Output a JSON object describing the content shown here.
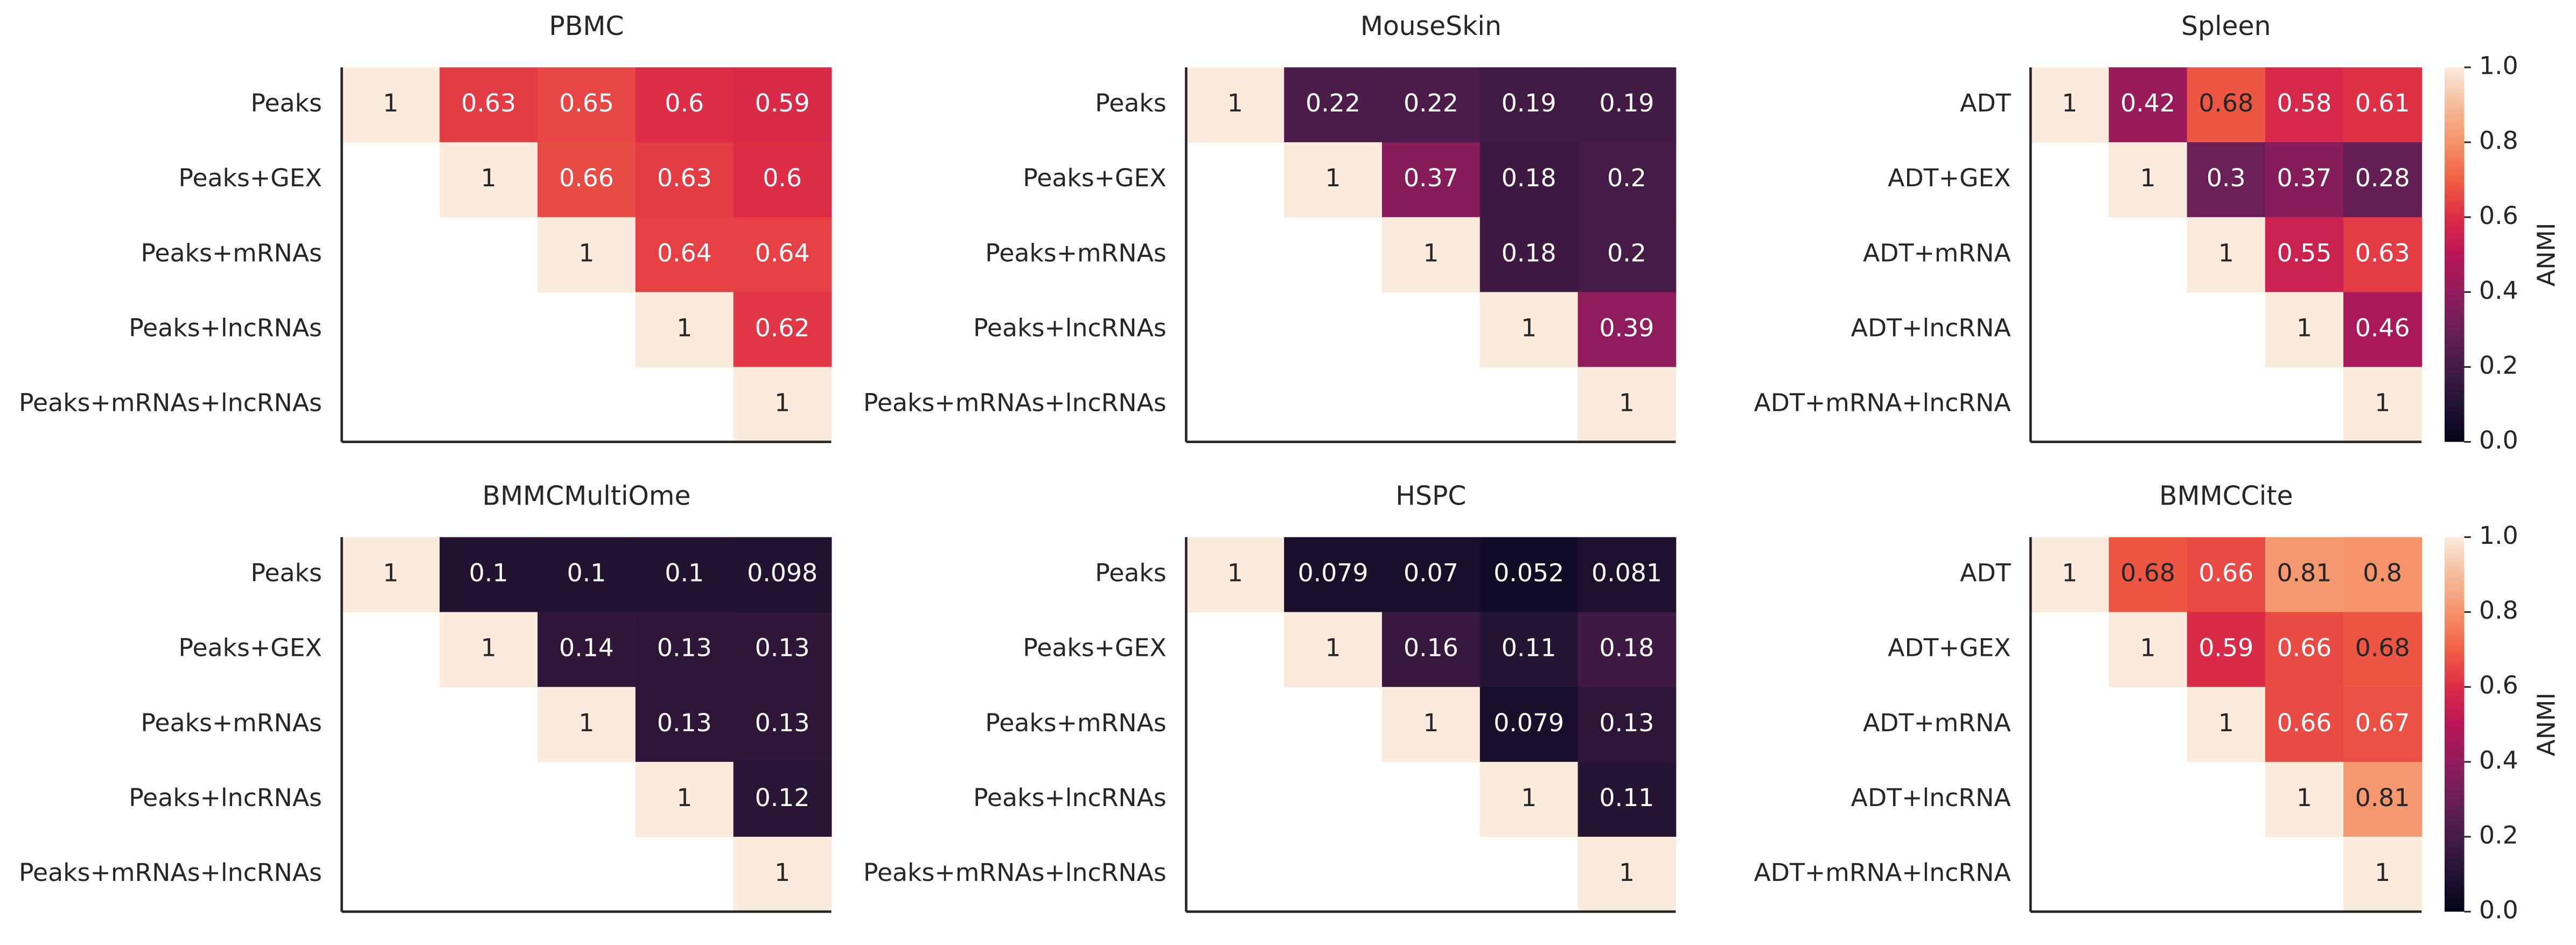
{
  "chart_data": [
    {
      "type": "heatmap",
      "title": "PBMC",
      "colormap": "rocket",
      "categories": [
        "Peaks",
        "Peaks+GEX",
        "Peaks+mRNAs",
        "Peaks+lncRNAs",
        "Peaks+mRNAs+lncRNAs"
      ],
      "values": [
        [
          1,
          0.63,
          0.65,
          0.6,
          0.59
        ],
        [
          null,
          1,
          0.66,
          0.63,
          0.6
        ],
        [
          null,
          null,
          1,
          0.64,
          0.64
        ],
        [
          null,
          null,
          null,
          1,
          0.62
        ],
        [
          null,
          null,
          null,
          null,
          1
        ]
      ]
    },
    {
      "type": "heatmap",
      "title": "MouseSkin",
      "colormap": "rocket",
      "categories": [
        "Peaks",
        "Peaks+GEX",
        "Peaks+mRNAs",
        "Peaks+lncRNAs",
        "Peaks+mRNAs+lncRNAs"
      ],
      "values": [
        [
          1,
          0.22,
          0.22,
          0.19,
          0.19
        ],
        [
          null,
          1,
          0.37,
          0.18,
          0.2
        ],
        [
          null,
          null,
          1,
          0.18,
          0.2
        ],
        [
          null,
          null,
          null,
          1,
          0.39
        ],
        [
          null,
          null,
          null,
          null,
          1
        ]
      ]
    },
    {
      "type": "heatmap",
      "title": "Spleen",
      "colormap": "rocket",
      "categories": [
        "ADT",
        "ADT+GEX",
        "ADT+mRNA",
        "ADT+lncRNA",
        "ADT+mRNA+lncRNA"
      ],
      "values": [
        [
          1,
          0.42,
          0.68,
          0.58,
          0.61
        ],
        [
          null,
          1,
          0.3,
          0.37,
          0.28
        ],
        [
          null,
          null,
          1,
          0.55,
          0.63
        ],
        [
          null,
          null,
          null,
          1,
          0.46
        ],
        [
          null,
          null,
          null,
          null,
          1
        ]
      ],
      "colorbar_label": "ANMI",
      "clim": [
        0,
        1
      ],
      "cticks": [
        {
          "value": 0,
          "label": "0.0"
        },
        {
          "value": 0.2,
          "label": "0.2"
        },
        {
          "value": 0.4,
          "label": "0.4"
        },
        {
          "value": 0.6,
          "label": "0.6"
        },
        {
          "value": 0.8,
          "label": "0.8"
        },
        {
          "value": 1,
          "label": "1.0"
        }
      ]
    },
    {
      "type": "heatmap",
      "title": "BMMCMultiOme",
      "colormap": "rocket",
      "categories": [
        "Peaks",
        "Peaks+GEX",
        "Peaks+mRNAs",
        "Peaks+lncRNAs",
        "Peaks+mRNAs+lncRNAs"
      ],
      "values": [
        [
          1,
          0.1,
          0.1,
          0.1,
          0.098
        ],
        [
          null,
          1,
          0.14,
          0.13,
          0.13
        ],
        [
          null,
          null,
          1,
          0.13,
          0.13
        ],
        [
          null,
          null,
          null,
          1,
          0.12
        ],
        [
          null,
          null,
          null,
          null,
          1
        ]
      ]
    },
    {
      "type": "heatmap",
      "title": "HSPC",
      "colormap": "rocket",
      "categories": [
        "Peaks",
        "Peaks+GEX",
        "Peaks+mRNAs",
        "Peaks+lncRNAs",
        "Peaks+mRNAs+lncRNAs"
      ],
      "values": [
        [
          1,
          0.079,
          0.07,
          0.052,
          0.081
        ],
        [
          null,
          1,
          0.16,
          0.11,
          0.18
        ],
        [
          null,
          null,
          1,
          0.079,
          0.13
        ],
        [
          null,
          null,
          null,
          1,
          0.11
        ],
        [
          null,
          null,
          null,
          null,
          1
        ]
      ]
    },
    {
      "type": "heatmap",
      "title": "BMMCCite",
      "colormap": "rocket",
      "categories": [
        "ADT",
        "ADT+GEX",
        "ADT+mRNA",
        "ADT+lncRNA",
        "ADT+mRNA+lncRNA"
      ],
      "values": [
        [
          1,
          0.68,
          0.66,
          0.81,
          0.8
        ],
        [
          null,
          1,
          0.59,
          0.66,
          0.68
        ],
        [
          null,
          null,
          1,
          0.66,
          0.67
        ],
        [
          null,
          null,
          null,
          1,
          0.81
        ],
        [
          null,
          null,
          null,
          null,
          1
        ]
      ],
      "colorbar_label": "ANMI",
      "clim": [
        0,
        1
      ],
      "cticks": [
        {
          "value": 0,
          "label": "0.0"
        },
        {
          "value": 0.2,
          "label": "0.2"
        },
        {
          "value": 0.4,
          "label": "0.4"
        },
        {
          "value": 0.6,
          "label": "0.6"
        },
        {
          "value": 0.8,
          "label": "0.8"
        },
        {
          "value": 1,
          "label": "1.0"
        }
      ]
    }
  ]
}
